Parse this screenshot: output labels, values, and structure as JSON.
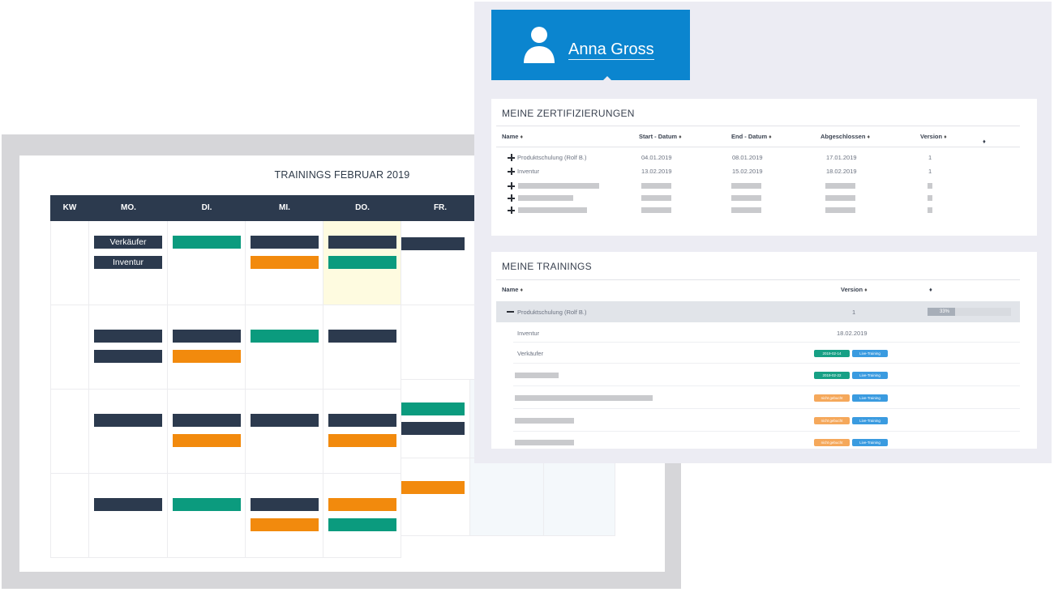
{
  "calendar": {
    "title": "TRAININGS FEBRUAR 2019",
    "headers": [
      "KW",
      "MO.",
      "DI.",
      "MI.",
      "DO.",
      "FR."
    ],
    "event_labels": {
      "seller": "Verkäufer",
      "inventory": "Inventur"
    },
    "colors": {
      "navy": "#2c3a4e",
      "green": "#0b9b7e",
      "orange": "#f28a0d",
      "today": "#fefbe0"
    }
  },
  "profile": {
    "name": "Anna Gross",
    "avatar_icon": "user-icon",
    "brand_color": "#0b85cf"
  },
  "certifications": {
    "title": "MEINE ZERTIFIZIERUNGEN",
    "columns": {
      "name": "Name",
      "start": "Start - Datum",
      "end": "End - Datum",
      "done": "Abgeschlossen",
      "version": "Version"
    },
    "sort_glyph": "♦",
    "rows": [
      {
        "name": "Produktschulung (Rolf B.)",
        "start": "04.01.2019",
        "end": "08.01.2019",
        "done": "17.01.2019",
        "version": "1"
      },
      {
        "name": "Inventur",
        "start": "13.02.2019",
        "end": "15.02.2019",
        "done": "18.02.2019",
        "version": "1"
      }
    ]
  },
  "trainings": {
    "title": "MEINE TRAININGS",
    "columns": {
      "name": "Name",
      "version": "Version"
    },
    "sort_glyph": "♦",
    "selected": {
      "name": "Produktschulung (Rolf B.)",
      "version": "1",
      "progress": "33%",
      "progress_fraction": 0.33
    },
    "children": [
      {
        "name": "Inventur",
        "version": "18.02.2019"
      },
      {
        "name": "Verkäufer",
        "badges": [
          "2019-02-14",
          "Live-Training"
        ]
      }
    ],
    "placeholder_badges": [
      [
        "2019-02-22",
        "Live-Training"
      ],
      [
        "nicht gebucht",
        "Live-Training"
      ],
      [
        "nicht gebucht",
        "Live-Training"
      ],
      [
        "nicht gebucht",
        "Live-Training"
      ]
    ]
  }
}
